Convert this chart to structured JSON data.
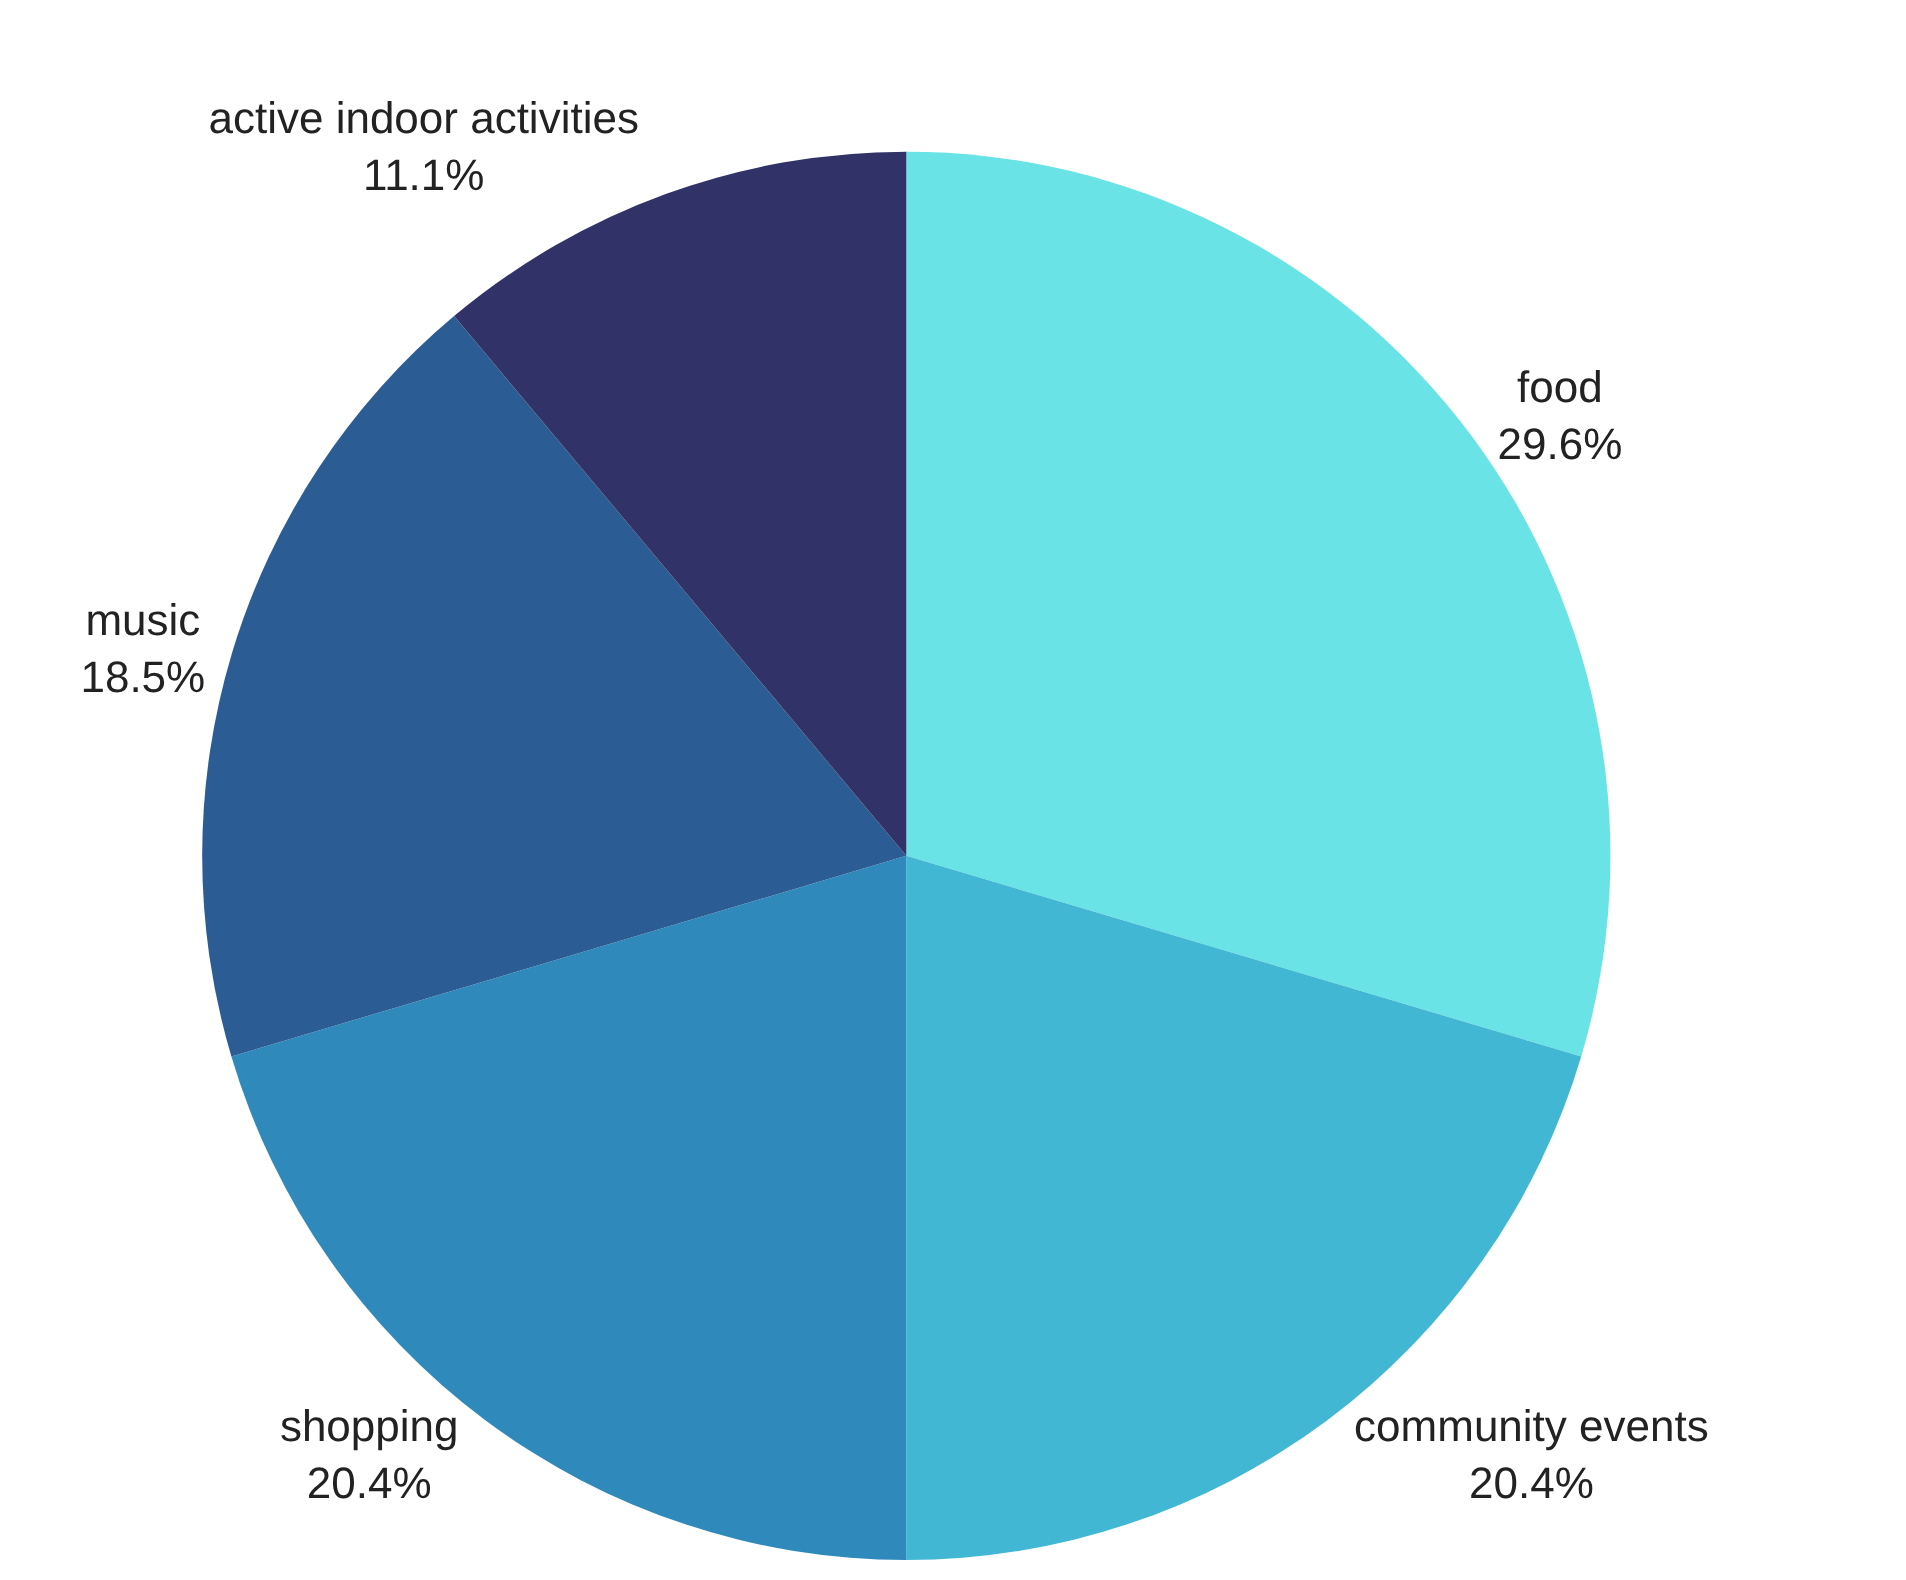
{
  "chart_data": {
    "type": "pie",
    "categories": [
      "food",
      "community events",
      "shopping",
      "music",
      "active indoor activities"
    ],
    "values": [
      29.6,
      20.4,
      20.4,
      18.5,
      11.1
    ],
    "value_labels": [
      "29.6%",
      "20.4%",
      "20.4%",
      "18.5%",
      "11.1%"
    ],
    "colors": [
      "#6ae3e6",
      "#41b7d4",
      "#2f8abb",
      "#2c5c94",
      "#313267"
    ],
    "legend": false
  }
}
